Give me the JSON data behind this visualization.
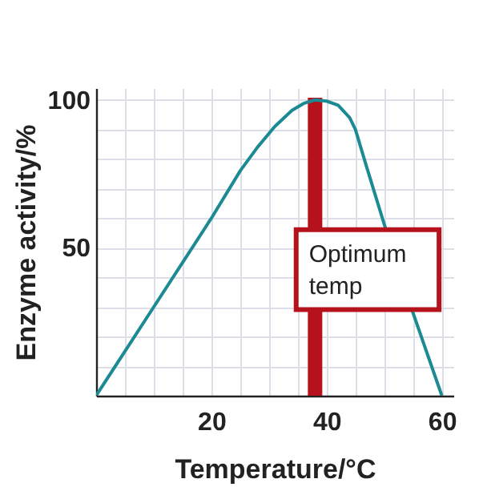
{
  "chart_data": {
    "type": "line",
    "xlabel": "Temperature/°C",
    "ylabel": "Enzyme activity/%",
    "x": [
      0,
      5,
      10,
      15,
      20,
      25,
      28,
      31,
      34,
      36,
      38,
      40,
      42,
      44,
      45,
      47,
      50,
      55,
      60
    ],
    "series": [
      {
        "color": "#1b8a92",
        "values": [
          0,
          15,
          30,
          45,
          60,
          76,
          84,
          91,
          96.5,
          98.8,
          100,
          99.6,
          98.2,
          94,
          90,
          77,
          58,
          28,
          0
        ]
      }
    ],
    "xlim": [
      0,
      62
    ],
    "ylim": [
      0,
      104
    ],
    "xticks": [
      {
        "value": 5,
        "label": null
      },
      {
        "value": 10,
        "label": null
      },
      {
        "value": 15,
        "label": null
      },
      20,
      {
        "value": 25,
        "label": null
      },
      {
        "value": 30,
        "label": null
      },
      {
        "value": 35,
        "label": null
      },
      40,
      {
        "value": 45,
        "label": null
      },
      {
        "value": 50,
        "label": null
      },
      {
        "value": 55,
        "label": null
      },
      60
    ],
    "yticks": [
      {
        "value": 10,
        "label": null
      },
      {
        "value": 20,
        "label": null
      },
      {
        "value": 30,
        "label": null
      },
      {
        "value": 40,
        "label": null
      },
      50,
      {
        "value": 60,
        "label": null
      },
      {
        "value": 70,
        "label": null
      },
      {
        "value": 80,
        "label": null
      },
      {
        "value": 90,
        "label": null
      },
      100
    ],
    "grid": true,
    "line_style": "solid",
    "marker": "none",
    "ref_lines": [
      {
        "axis": "x",
        "value": 38,
        "label": "Optimum temp",
        "color": "#b5121b"
      }
    ]
  }
}
